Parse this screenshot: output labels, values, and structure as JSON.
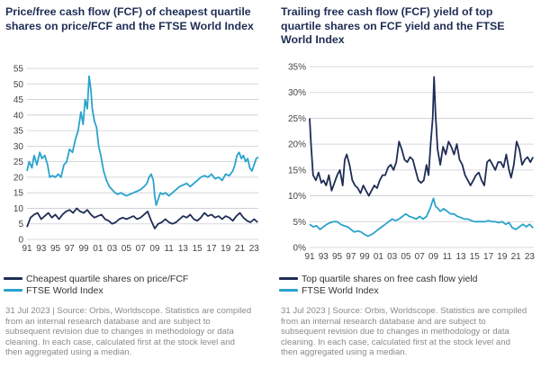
{
  "colors": {
    "navy": "#1f2d55",
    "teal": "#2aa3cc",
    "grid": "#c9cdd3",
    "axis_text": "#444444",
    "source_text": "#8a8a8a"
  },
  "chart_data": [
    {
      "type": "line",
      "title": "Price/free cash flow (FCF) of cheapest quartile shares on price/FCF and the FTSE World Index",
      "xlabel": "",
      "ylabel": "",
      "xlim": [
        1991,
        2023.6
      ],
      "ylim": [
        0,
        55
      ],
      "yticks": [
        0,
        5,
        10,
        15,
        20,
        25,
        30,
        35,
        40,
        45,
        50,
        55
      ],
      "ytick_labels": [
        "0",
        "5",
        "10",
        "15",
        "20",
        "25",
        "30",
        "35",
        "40",
        "45",
        "50",
        "55"
      ],
      "xtick_labels": [
        "91",
        "93",
        "95",
        "97",
        "99",
        "01",
        "03",
        "05",
        "07",
        "09",
        "11",
        "13",
        "15",
        "17",
        "19",
        "21",
        "23"
      ],
      "grid": true,
      "legend_position": "bottom",
      "series": [
        {
          "name": "Cheapest quartile shares on price/FCF",
          "color": "#1f2d55",
          "x": [
            1991.0,
            1991.5,
            1992.0,
            1992.5,
            1993.0,
            1993.5,
            1994.0,
            1994.5,
            1995.0,
            1995.5,
            1996.0,
            1996.5,
            1997.0,
            1997.5,
            1998.0,
            1998.5,
            1999.0,
            1999.5,
            2000.0,
            2000.5,
            2001.0,
            2001.5,
            2002.0,
            2002.5,
            2003.0,
            2003.5,
            2004.0,
            2004.5,
            2005.0,
            2005.5,
            2006.0,
            2006.5,
            2007.0,
            2007.5,
            2008.0,
            2008.5,
            2009.0,
            2009.5,
            2010.0,
            2010.5,
            2011.0,
            2011.5,
            2012.0,
            2012.5,
            2013.0,
            2013.5,
            2014.0,
            2014.5,
            2015.0,
            2015.5,
            2016.0,
            2016.5,
            2017.0,
            2017.5,
            2018.0,
            2018.5,
            2019.0,
            2019.5,
            2020.0,
            2020.5,
            2021.0,
            2021.5,
            2022.0,
            2022.5,
            2023.0,
            2023.5
          ],
          "y": [
            4.0,
            7.0,
            8.0,
            8.5,
            6.5,
            7.5,
            8.5,
            7.0,
            8.0,
            6.5,
            8.0,
            9.0,
            9.5,
            8.5,
            10.0,
            9.0,
            8.5,
            9.5,
            8.0,
            7.0,
            7.5,
            8.0,
            6.5,
            6.0,
            5.0,
            5.5,
            6.5,
            7.0,
            6.5,
            7.0,
            7.5,
            6.5,
            7.0,
            8.0,
            9.0,
            6.0,
            3.5,
            5.0,
            5.5,
            6.5,
            5.5,
            5.0,
            5.5,
            6.5,
            7.5,
            7.0,
            8.0,
            6.5,
            6.0,
            7.0,
            8.5,
            7.5,
            8.0,
            7.0,
            7.5,
            6.5,
            7.5,
            7.0,
            6.0,
            7.5,
            8.5,
            7.0,
            6.0,
            5.5,
            6.5,
            5.5
          ]
        },
        {
          "name": "FTSE World Index",
          "color": "#2aa3cc",
          "x": [
            1991.0,
            1991.3,
            1991.7,
            1992.0,
            1992.4,
            1992.8,
            1993.1,
            1993.5,
            1993.9,
            1994.2,
            1994.6,
            1995.0,
            1995.4,
            1995.8,
            1996.2,
            1996.6,
            1997.0,
            1997.4,
            1997.8,
            1998.2,
            1998.6,
            1998.9,
            1999.2,
            1999.5,
            1999.75,
            2000.0,
            2000.2,
            2000.5,
            2000.8,
            2001.1,
            2001.4,
            2001.8,
            2002.2,
            2002.6,
            2003.0,
            2003.4,
            2003.8,
            2004.2,
            2004.6,
            2005.0,
            2005.5,
            2006.0,
            2006.5,
            2007.0,
            2007.5,
            2007.9,
            2008.2,
            2008.5,
            2008.8,
            2009.0,
            2009.2,
            2009.5,
            2009.8,
            2010.1,
            2010.5,
            2011.0,
            2011.5,
            2012.0,
            2012.5,
            2013.0,
            2013.5,
            2014.0,
            2014.5,
            2015.0,
            2015.5,
            2016.0,
            2016.5,
            2017.0,
            2017.5,
            2018.0,
            2018.5,
            2019.0,
            2019.5,
            2020.0,
            2020.3,
            2020.6,
            2020.9,
            2021.2,
            2021.5,
            2021.8,
            2022.1,
            2022.4,
            2022.7,
            2023.0,
            2023.3,
            2023.6
          ],
          "y": [
            22.0,
            25.0,
            23.0,
            27.0,
            24.0,
            28.0,
            26.0,
            27.0,
            24.0,
            20.0,
            20.5,
            20.0,
            21.0,
            20.0,
            24.0,
            25.0,
            29.0,
            28.0,
            32.0,
            35.0,
            41.0,
            37.0,
            45.0,
            42.0,
            52.5,
            48.0,
            42.0,
            38.0,
            36.0,
            30.0,
            27.0,
            22.0,
            19.0,
            17.0,
            16.0,
            15.0,
            14.5,
            15.0,
            14.5,
            14.0,
            14.5,
            15.0,
            15.5,
            16.0,
            17.0,
            18.0,
            20.0,
            21.0,
            19.0,
            14.0,
            11.0,
            13.0,
            15.0,
            14.5,
            15.0,
            14.0,
            15.0,
            16.0,
            17.0,
            17.5,
            18.0,
            17.0,
            18.0,
            19.0,
            20.0,
            20.5,
            20.0,
            21.0,
            19.5,
            20.0,
            19.0,
            21.0,
            20.5,
            22.0,
            24.0,
            27.0,
            28.0,
            26.0,
            27.0,
            25.0,
            26.0,
            23.0,
            22.0,
            24.0,
            26.0,
            26.5
          ]
        }
      ]
    },
    {
      "type": "line",
      "title": "Trailing free cash flow (FCF) yield of top quartile shares on FCF yield and the FTSE World Index",
      "xlabel": "",
      "ylabel": "",
      "xlim": [
        1991,
        2023.6
      ],
      "ylim": [
        0,
        35
      ],
      "yticks": [
        0,
        5,
        10,
        15,
        20,
        25,
        30,
        35
      ],
      "ytick_labels": [
        "0%",
        "5%",
        "10%",
        "15%",
        "20%",
        "25%",
        "30%",
        "35%"
      ],
      "xtick_labels": [
        "91",
        "93",
        "95",
        "97",
        "99",
        "01",
        "03",
        "05",
        "07",
        "09",
        "11",
        "13",
        "15",
        "17",
        "19",
        "21",
        "23"
      ],
      "grid": true,
      "legend_position": "bottom",
      "series": [
        {
          "name": "Top quartile shares on free cash flow yield",
          "color": "#1f2d55",
          "x": [
            1991.0,
            1991.2,
            1991.5,
            1991.9,
            1992.3,
            1992.7,
            1993.0,
            1993.4,
            1993.8,
            1994.2,
            1994.6,
            1995.0,
            1995.4,
            1995.8,
            1996.1,
            1996.4,
            1996.8,
            1997.2,
            1997.6,
            1998.0,
            1998.4,
            1998.8,
            1999.2,
            1999.6,
            2000.0,
            2000.4,
            2000.8,
            2001.2,
            2001.6,
            2002.0,
            2002.4,
            2002.8,
            2003.2,
            2003.6,
            2004.0,
            2004.4,
            2004.8,
            2005.2,
            2005.6,
            2006.0,
            2006.4,
            2006.8,
            2007.2,
            2007.6,
            2008.0,
            2008.3,
            2008.6,
            2008.9,
            2009.1,
            2009.3,
            2009.6,
            2010.0,
            2010.4,
            2010.8,
            2011.2,
            2011.6,
            2012.0,
            2012.4,
            2012.8,
            2013.2,
            2013.6,
            2014.0,
            2014.4,
            2014.8,
            2015.2,
            2015.6,
            2016.0,
            2016.4,
            2016.8,
            2017.2,
            2017.6,
            2018.0,
            2018.4,
            2018.8,
            2019.2,
            2019.6,
            2020.0,
            2020.3,
            2020.7,
            2021.1,
            2021.5,
            2021.9,
            2022.3,
            2022.7,
            2023.1,
            2023.5
          ],
          "y": [
            25.0,
            20.0,
            14.0,
            13.0,
            14.5,
            12.5,
            13.0,
            12.0,
            14.0,
            11.0,
            12.5,
            14.0,
            15.0,
            12.0,
            17.0,
            18.0,
            16.0,
            13.0,
            12.0,
            11.5,
            10.5,
            12.0,
            11.0,
            10.0,
            11.0,
            12.0,
            11.5,
            13.0,
            14.0,
            14.0,
            15.5,
            16.0,
            15.0,
            16.5,
            20.5,
            19.0,
            17.0,
            16.5,
            17.5,
            17.0,
            15.0,
            13.0,
            12.5,
            13.0,
            16.0,
            14.0,
            20.0,
            25.0,
            33.0,
            26.0,
            19.0,
            16.0,
            19.5,
            18.0,
            20.5,
            19.5,
            18.0,
            20.0,
            17.0,
            16.0,
            14.0,
            13.0,
            12.0,
            13.0,
            14.0,
            14.5,
            13.0,
            12.0,
            16.5,
            17.0,
            16.0,
            15.0,
            16.5,
            16.5,
            15.5,
            18.0,
            15.0,
            13.5,
            16.0,
            20.5,
            19.0,
            16.0,
            17.0,
            17.5,
            16.5,
            17.5
          ]
        },
        {
          "name": "FTSE World Index",
          "color": "#2aa3cc",
          "x": [
            1991.0,
            1991.5,
            1992.0,
            1992.5,
            1993.0,
            1993.5,
            1994.0,
            1994.5,
            1995.0,
            1995.5,
            1996.0,
            1996.5,
            1997.0,
            1997.5,
            1998.0,
            1998.5,
            1999.0,
            1999.5,
            2000.0,
            2000.5,
            2001.0,
            2001.5,
            2002.0,
            2002.5,
            2003.0,
            2003.5,
            2004.0,
            2004.5,
            2005.0,
            2005.5,
            2006.0,
            2006.5,
            2007.0,
            2007.5,
            2008.0,
            2008.5,
            2009.0,
            2009.3,
            2009.7,
            2010.0,
            2010.5,
            2011.0,
            2011.5,
            2012.0,
            2012.5,
            2013.0,
            2013.5,
            2014.0,
            2014.5,
            2015.0,
            2015.5,
            2016.0,
            2016.5,
            2017.0,
            2017.5,
            2018.0,
            2018.5,
            2019.0,
            2019.5,
            2020.0,
            2020.5,
            2021.0,
            2021.5,
            2022.0,
            2022.5,
            2023.0,
            2023.5
          ],
          "y": [
            4.5,
            4.0,
            4.2,
            3.5,
            4.0,
            4.5,
            4.8,
            5.0,
            5.0,
            4.5,
            4.2,
            4.0,
            3.5,
            3.0,
            3.2,
            3.0,
            2.5,
            2.2,
            2.5,
            3.0,
            3.5,
            4.0,
            4.5,
            5.0,
            5.5,
            5.2,
            5.5,
            6.0,
            6.5,
            6.0,
            5.8,
            5.5,
            6.0,
            5.5,
            6.0,
            7.5,
            9.5,
            8.0,
            7.5,
            7.0,
            7.5,
            7.0,
            6.5,
            6.5,
            6.0,
            5.8,
            5.5,
            5.5,
            5.2,
            5.0,
            5.0,
            5.0,
            5.0,
            5.2,
            5.0,
            5.0,
            4.8,
            5.0,
            4.5,
            4.8,
            3.8,
            3.5,
            4.0,
            4.5,
            4.0,
            4.5,
            3.8
          ]
        }
      ]
    }
  ],
  "footnote": "31 Jul 2023 | Source: Orbis, Worldscope. Statistics are compiled from an internal research database and are subject to subsequent revision due to changes in methodology or data cleaning. In each case, calculated first at the stock level and then aggregated using a median."
}
